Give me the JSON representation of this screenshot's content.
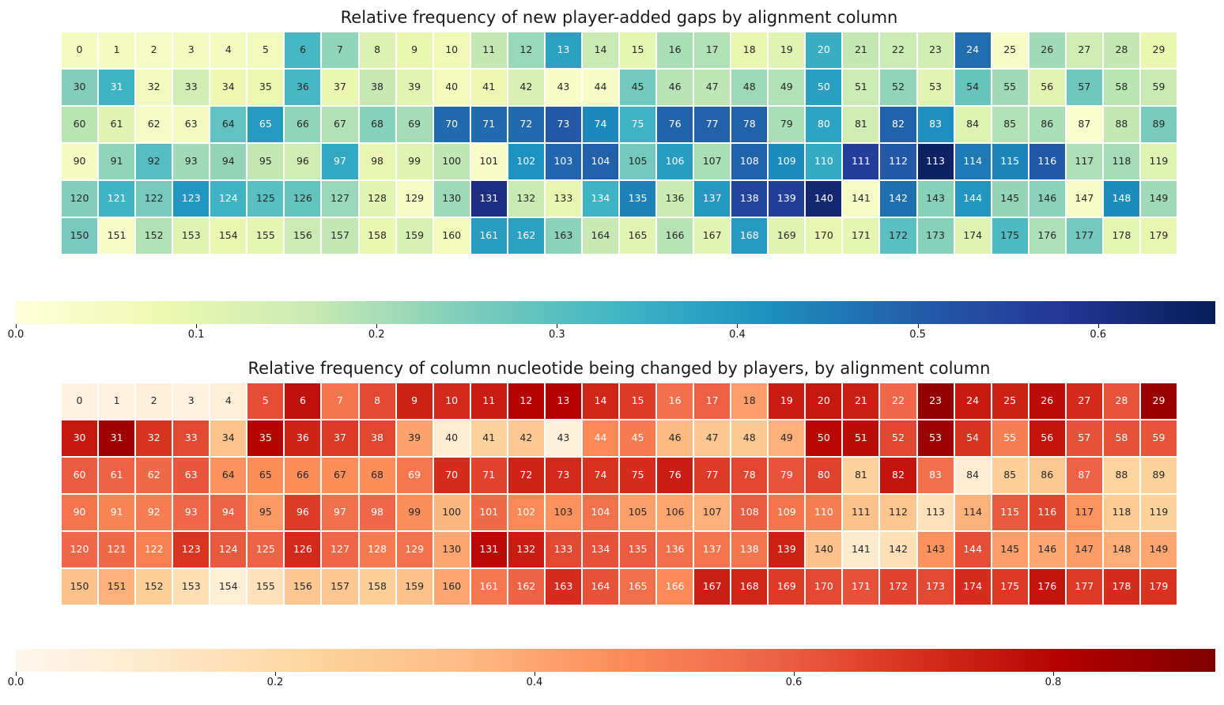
{
  "chart_data": [
    {
      "type": "heatmap",
      "title": "Relative frequency of new player-added gaps by alignment column",
      "cell_label_scheme": "alignment column index 0-179, row-major, 30 columns per row",
      "rows": 6,
      "cols": 30,
      "vmin": 0,
      "vmax": 0.665,
      "colormap_name": "YlGnBu",
      "colormap_stops": [
        "#ffffd9",
        "#edf8b1",
        "#c7e9b4",
        "#7fcdbb",
        "#41b6c4",
        "#1d91c0",
        "#225ea8",
        "#253494",
        "#081d58"
      ],
      "dark_text_color": "#262626",
      "light_text_color": "#ffffff",
      "colorbar_tick_labels": [
        "0.0",
        "0.1",
        "0.2",
        "0.3",
        "0.4",
        "0.5",
        "0.6"
      ],
      "colorbar_tick_values": [
        0,
        0.1,
        0.2,
        0.3,
        0.4,
        0.5,
        0.6
      ],
      "values": [
        0.05,
        0.05,
        0.04,
        0.05,
        0.05,
        0.06,
        0.325,
        0.23,
        0.12,
        0.09,
        0.07,
        0.17,
        0.22,
        0.38,
        0.16,
        0.1,
        0.2,
        0.19,
        0.09,
        0.11,
        0.35,
        0.17,
        0.155,
        0.145,
        0.475,
        0.035,
        0.21,
        0.15,
        0.17,
        0.09,
        0.245,
        0.34,
        0.055,
        0.145,
        0.08,
        0.085,
        0.325,
        0.09,
        0.165,
        0.105,
        0.06,
        0.08,
        0.13,
        0.035,
        0.04,
        0.265,
        0.185,
        0.175,
        0.215,
        0.19,
        0.385,
        0.155,
        0.23,
        0.105,
        0.28,
        0.21,
        0.105,
        0.27,
        0.18,
        0.16,
        0.18,
        0.11,
        0.04,
        0.05,
        0.29,
        0.395,
        0.23,
        0.19,
        0.24,
        0.205,
        0.48,
        0.48,
        0.48,
        0.51,
        0.43,
        0.34,
        0.49,
        0.495,
        0.49,
        0.2,
        0.375,
        0.15,
        0.49,
        0.42,
        0.115,
        0.19,
        0.2,
        0.025,
        0.17,
        0.255,
        0.045,
        0.23,
        0.305,
        0.21,
        0.225,
        0.17,
        0.15,
        0.365,
        0.095,
        0.11,
        0.175,
        0.035,
        0.415,
        0.485,
        0.495,
        0.265,
        0.39,
        0.2,
        0.49,
        0.425,
        0.36,
        0.565,
        0.51,
        0.65,
        0.455,
        0.435,
        0.51,
        0.195,
        0.205,
        0.115,
        0.245,
        0.34,
        0.26,
        0.405,
        0.34,
        0.3,
        0.285,
        0.22,
        0.105,
        0.04,
        0.215,
        0.605,
        0.16,
        0.095,
        0.34,
        0.44,
        0.16,
        0.4,
        0.55,
        0.56,
        0.63,
        0.04,
        0.47,
        0.24,
        0.405,
        0.225,
        0.235,
        0.035,
        0.425,
        0.21,
        0.26,
        0.035,
        0.19,
        0.11,
        0.09,
        0.1,
        0.155,
        0.17,
        0.09,
        0.13,
        0.065,
        0.39,
        0.38,
        0.235,
        0.165,
        0.105,
        0.185,
        0.105,
        0.395,
        0.11,
        0.095,
        0.1,
        0.3,
        0.24,
        0.11,
        0.315,
        0.195,
        0.265,
        0.1,
        0.095
      ]
    },
    {
      "type": "heatmap",
      "title": "Relative frequency of column nucleotide being changed by players, by alignment column",
      "cell_label_scheme": "alignment column index 0-179, row-major, 30 columns per row",
      "rows": 6,
      "cols": 30,
      "vmin": 0,
      "vmax": 0.925,
      "colormap_name": "OrRd",
      "colormap_stops": [
        "#fff7ec",
        "#fee8c8",
        "#fdd49e",
        "#fdbb84",
        "#fc8d59",
        "#ef6548",
        "#d7301f",
        "#b30000",
        "#7f0000"
      ],
      "dark_text_color": "#262626",
      "light_text_color": "#ffffff",
      "colorbar_tick_labels": [
        "0.0",
        "0.2",
        "0.4",
        "0.6",
        "0.8"
      ],
      "colorbar_tick_values": [
        0,
        0.2,
        0.4,
        0.6,
        0.8
      ],
      "values": [
        0.04,
        0.04,
        0.05,
        0.04,
        0.06,
        0.63,
        0.77,
        0.53,
        0.64,
        0.73,
        0.71,
        0.74,
        0.8,
        0.81,
        0.72,
        0.67,
        0.545,
        0.59,
        0.42,
        0.74,
        0.75,
        0.735,
        0.57,
        0.88,
        0.745,
        0.73,
        0.78,
        0.71,
        0.615,
        0.87,
        0.75,
        0.85,
        0.69,
        0.64,
        0.31,
        0.8,
        0.725,
        0.67,
        0.645,
        0.41,
        0.08,
        0.24,
        0.285,
        0.05,
        0.47,
        0.515,
        0.345,
        0.29,
        0.28,
        0.375,
        0.795,
        0.78,
        0.645,
        0.86,
        0.69,
        0.505,
        0.76,
        0.62,
        0.62,
        0.615,
        0.595,
        0.585,
        0.565,
        0.61,
        0.45,
        0.46,
        0.46,
        0.46,
        0.46,
        0.525,
        0.7,
        0.65,
        0.725,
        0.71,
        0.69,
        0.7,
        0.74,
        0.67,
        0.645,
        0.615,
        0.655,
        0.24,
        0.76,
        0.545,
        0.08,
        0.25,
        0.28,
        0.585,
        0.23,
        0.235,
        0.535,
        0.485,
        0.51,
        0.57,
        0.585,
        0.43,
        0.67,
        0.545,
        0.57,
        0.455,
        0.355,
        0.565,
        0.475,
        0.45,
        0.54,
        0.415,
        0.4,
        0.375,
        0.6,
        0.535,
        0.505,
        0.315,
        0.3,
        0.155,
        0.37,
        0.605,
        0.65,
        0.445,
        0.275,
        0.24,
        0.57,
        0.565,
        0.5,
        0.685,
        0.605,
        0.58,
        0.71,
        0.575,
        0.515,
        0.54,
        0.4,
        0.79,
        0.74,
        0.64,
        0.62,
        0.6,
        0.55,
        0.535,
        0.53,
        0.73,
        0.315,
        0.095,
        0.16,
        0.45,
        0.63,
        0.42,
        0.395,
        0.425,
        0.38,
        0.4,
        0.315,
        0.375,
        0.255,
        0.17,
        0.07,
        0.155,
        0.29,
        0.29,
        0.25,
        0.315,
        0.395,
        0.525,
        0.585,
        0.7,
        0.62,
        0.55,
        0.47,
        0.735,
        0.72,
        0.67,
        0.64,
        0.62,
        0.65,
        0.64,
        0.7,
        0.675,
        0.76,
        0.67,
        0.7,
        0.69
      ]
    }
  ]
}
